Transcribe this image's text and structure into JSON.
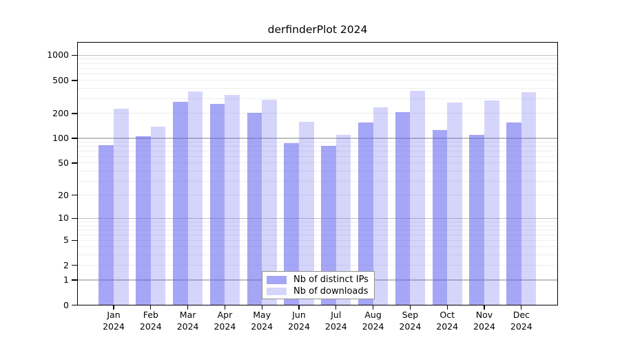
{
  "chart_data": {
    "type": "bar",
    "title": "derfinderPlot 2024",
    "categories": [
      "Jan",
      "Feb",
      "Mar",
      "Apr",
      "May",
      "Jun",
      "Jul",
      "Aug",
      "Sep",
      "Oct",
      "Nov",
      "Dec"
    ],
    "year": "2024",
    "series": [
      {
        "name": "Nb of distinct IPs",
        "color": "rgba(92,92,238,0.55)",
        "legend_color": "#a5a5f5",
        "values": [
          82,
          105,
          277,
          260,
          203,
          88,
          81,
          156,
          208,
          125,
          110,
          155
        ]
      },
      {
        "name": "Nb of downloads",
        "color": "rgba(92,92,238,0.26)",
        "legend_color": "#d5d5fa",
        "values": [
          226,
          138,
          369,
          331,
          291,
          159,
          111,
          238,
          376,
          268,
          286,
          359
        ]
      }
    ],
    "xlabel": "",
    "ylabel": "",
    "y_scale": "log10(1+v)",
    "y_ticks": [
      0,
      1,
      2,
      5,
      10,
      20,
      50,
      100,
      200,
      500,
      1000
    ],
    "ylim": [
      0,
      1450
    ],
    "grid": {
      "major_values": [
        1,
        10,
        100,
        1000
      ],
      "major_color": "#bfbfbf",
      "minor_color": "#ededed",
      "grid_on": true
    },
    "legend": {
      "position": "inside-bottom-center"
    }
  }
}
